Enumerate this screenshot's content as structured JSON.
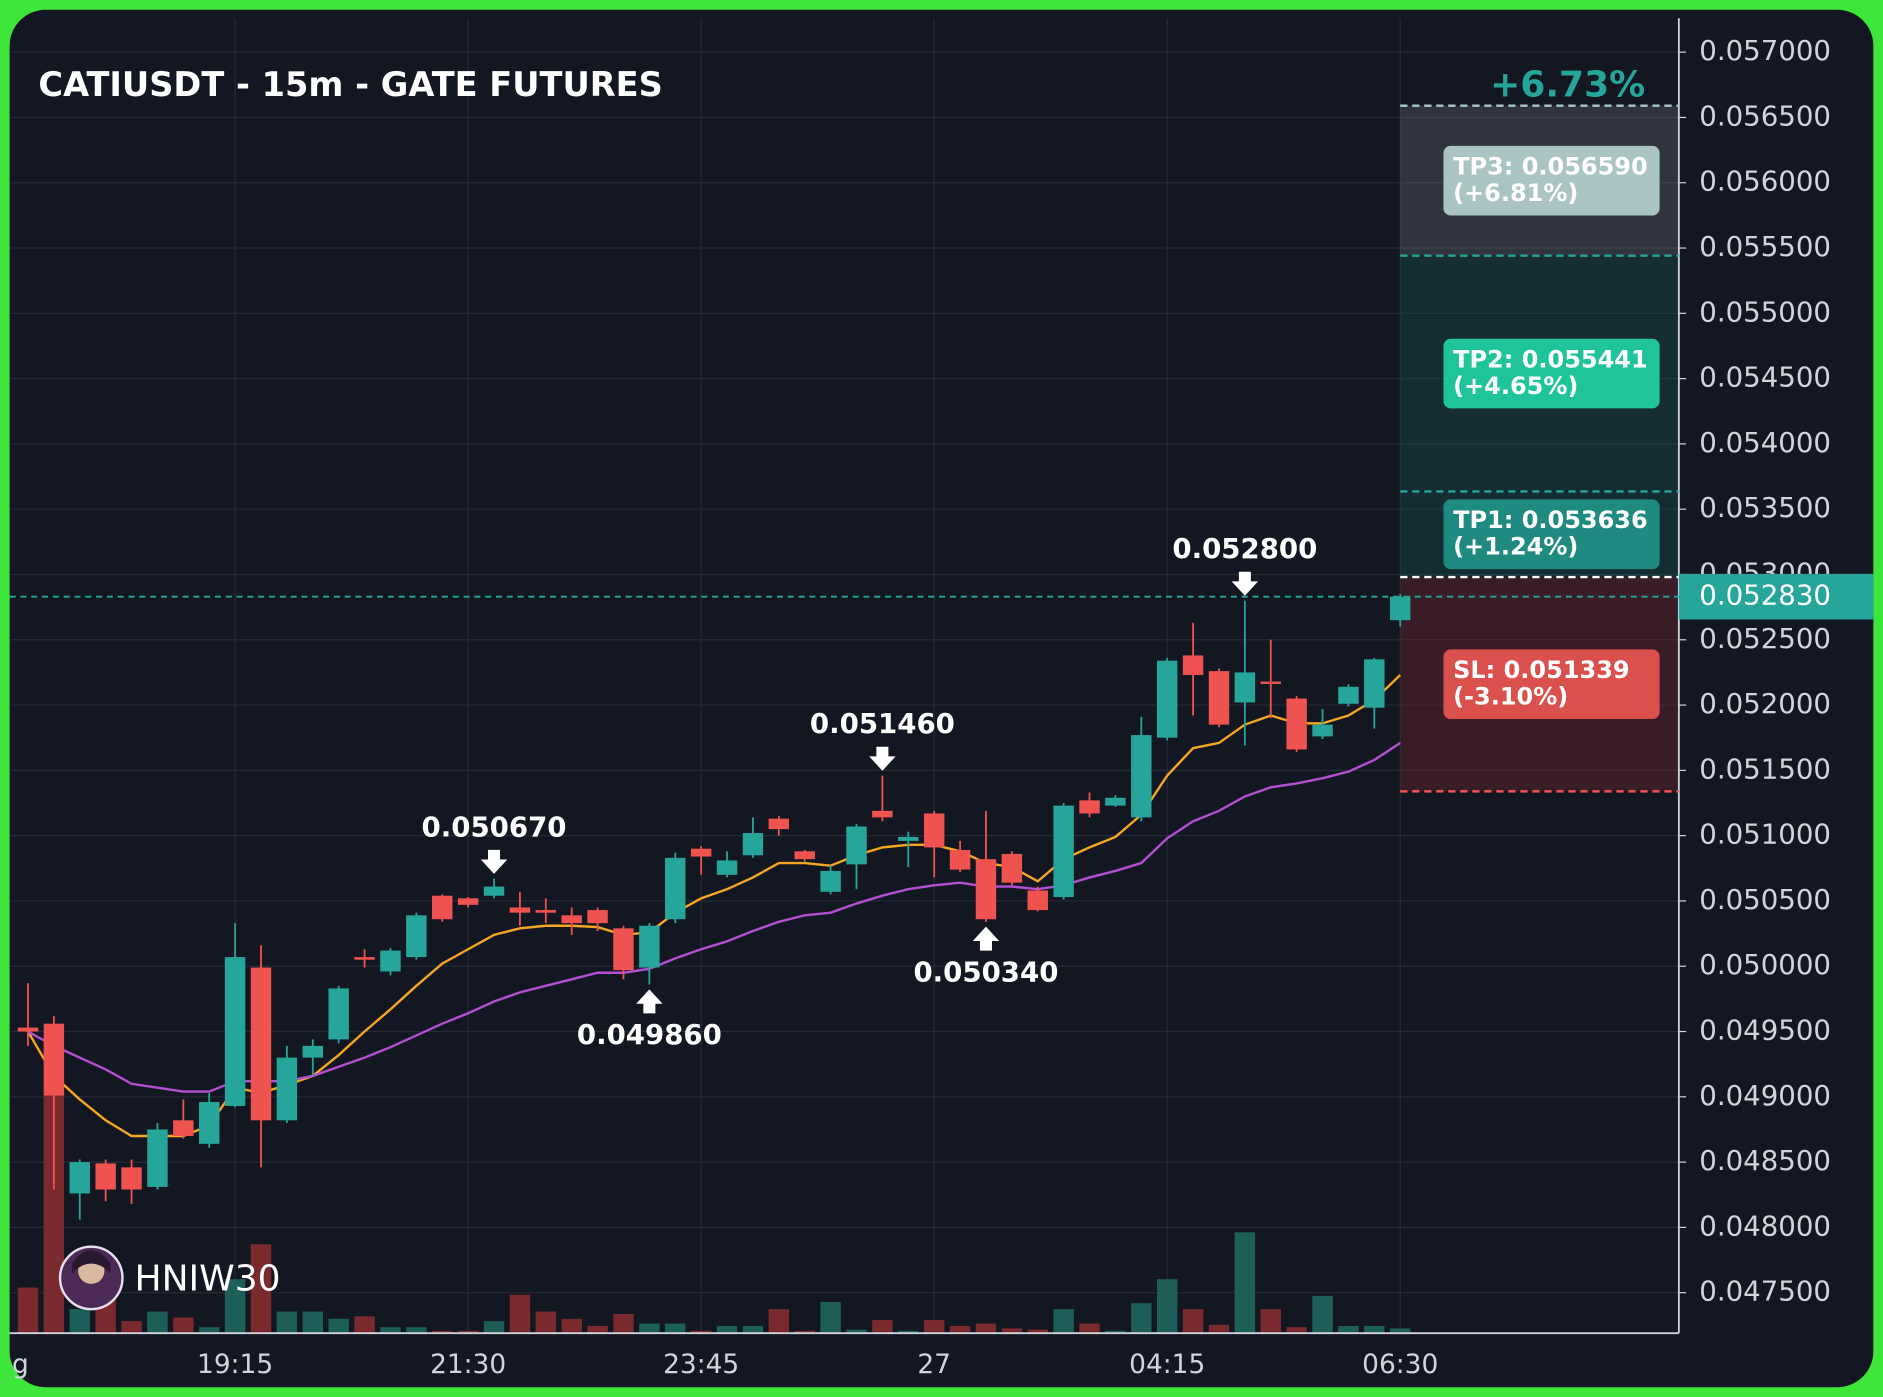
{
  "chart_data": {
    "type": "candlestick",
    "title": "CATIUSDT - 15m - GATE FUTURES",
    "performance": "+6.73%",
    "watermark": "HNIW30",
    "x_edge_label": "g",
    "categories": [
      null,
      null,
      null,
      null,
      null,
      null,
      null,
      null,
      "19:15",
      null,
      null,
      null,
      null,
      null,
      null,
      null,
      null,
      "21:30",
      null,
      null,
      null,
      null,
      null,
      null,
      null,
      null,
      "23:45",
      null,
      null,
      null,
      null,
      null,
      null,
      null,
      null,
      "27",
      null,
      null,
      null,
      null,
      null,
      null,
      null,
      null,
      "04:15",
      null,
      null,
      null,
      null,
      null,
      null,
      null,
      null,
      "06:30"
    ],
    "open": [
      0.04953,
      0.04956,
      0.04826,
      0.04849,
      0.04846,
      0.04831,
      0.04882,
      0.04864,
      0.04893,
      0.04999,
      0.04882,
      0.0493,
      0.04944,
      0.05007,
      0.04996,
      0.05007,
      0.05054,
      0.05052,
      0.05054,
      0.05045,
      0.05043,
      0.05039,
      0.05043,
      0.05029,
      0.04999,
      0.05036,
      0.0509,
      0.0507,
      0.05085,
      0.05113,
      0.05088,
      0.05057,
      0.05078,
      0.05119,
      0.05096,
      0.05117,
      0.05089,
      0.05082,
      0.05086,
      0.05058,
      0.05053,
      0.05127,
      0.05123,
      0.05114,
      0.05175,
      0.05238,
      0.05226,
      0.05202,
      0.05218,
      0.05205,
      0.05176,
      0.05201,
      0.05198,
      0.05265
    ],
    "high": [
      0.04987,
      0.04962,
      0.04852,
      0.04852,
      0.04852,
      0.0488,
      0.04898,
      0.04903,
      0.05033,
      0.05016,
      0.04939,
      0.04944,
      0.04985,
      0.05013,
      0.05014,
      0.05041,
      0.05055,
      0.05053,
      0.05067,
      0.05057,
      0.05052,
      0.05045,
      0.05045,
      0.05031,
      0.05033,
      0.05087,
      0.05092,
      0.05088,
      0.05114,
      0.05115,
      0.05089,
      0.05077,
      0.05109,
      0.05146,
      0.05103,
      0.05119,
      0.05096,
      0.05119,
      0.05088,
      0.05061,
      0.05125,
      0.05133,
      0.05131,
      0.05191,
      0.05236,
      0.05263,
      0.05228,
      0.0528,
      0.0525,
      0.05207,
      0.05197,
      0.05216,
      0.05236,
      0.05285
    ],
    "low": [
      0.04939,
      0.04829,
      0.04806,
      0.0482,
      0.04818,
      0.04829,
      0.04868,
      0.04861,
      0.04892,
      0.04846,
      0.0488,
      0.04916,
      0.04941,
      0.04999,
      0.04993,
      0.05005,
      0.05034,
      0.05045,
      0.05052,
      0.05031,
      0.05033,
      0.05024,
      0.05027,
      0.0499,
      0.04986,
      0.05033,
      0.0507,
      0.05068,
      0.05083,
      0.051,
      0.0508,
      0.05055,
      0.05059,
      0.05111,
      0.05076,
      0.05068,
      0.05072,
      0.05034,
      0.05062,
      0.05042,
      0.05051,
      0.05114,
      0.05122,
      0.05111,
      0.05173,
      0.05192,
      0.05183,
      0.05169,
      0.0519,
      0.05164,
      0.05174,
      0.05199,
      0.05182,
      0.0526
    ],
    "close": [
      0.0495,
      0.04901,
      0.0485,
      0.04829,
      0.04829,
      0.04875,
      0.0487,
      0.04896,
      0.05007,
      0.04882,
      0.0493,
      0.04939,
      0.04983,
      0.05005,
      0.05012,
      0.05039,
      0.05036,
      0.05047,
      0.05061,
      0.05041,
      0.05041,
      0.05033,
      0.05033,
      0.04997,
      0.05031,
      0.05083,
      0.05084,
      0.05081,
      0.05102,
      0.05105,
      0.05082,
      0.05073,
      0.05107,
      0.05114,
      0.05099,
      0.05091,
      0.05074,
      0.05036,
      0.05064,
      0.05043,
      0.05123,
      0.05117,
      0.05129,
      0.05177,
      0.05234,
      0.05223,
      0.05185,
      0.05225,
      0.05217,
      0.05166,
      0.05185,
      0.05214,
      0.05235,
      0.05283
    ],
    "up_color": "#26a69a",
    "down_color": "#ef5350",
    "volume": {
      "values": [
        38,
        198,
        20,
        30,
        10,
        18,
        13,
        5,
        45,
        74,
        18,
        18,
        12,
        14,
        5,
        5,
        2,
        2,
        10,
        32,
        18,
        12,
        6,
        16,
        8,
        8,
        2,
        6,
        6,
        20,
        2,
        26,
        3,
        11,
        2,
        11,
        6,
        8,
        4,
        3,
        20,
        8,
        2,
        25,
        45,
        20,
        7,
        84,
        20,
        5,
        31,
        6,
        6,
        4
      ],
      "up_color": "#1d5e58",
      "down_color": "#7a2a2c"
    },
    "moving_averages": [
      {
        "color": "#f5a623",
        "values": [
          0.0495,
          0.04916,
          0.04898,
          0.04882,
          0.0487,
          0.0487,
          0.0487,
          0.04878,
          0.04907,
          0.04903,
          0.04909,
          0.04916,
          0.04932,
          0.0495,
          0.04967,
          0.04985,
          0.05002,
          0.05013,
          0.05024,
          0.05029,
          0.05031,
          0.05031,
          0.0503,
          0.05024,
          0.05026,
          0.05041,
          0.05052,
          0.05059,
          0.05068,
          0.05079,
          0.05079,
          0.05077,
          0.05085,
          0.05091,
          0.05093,
          0.05093,
          0.05088,
          0.05079,
          0.05076,
          0.05065,
          0.05082,
          0.05091,
          0.05099,
          0.05116,
          0.05146,
          0.05167,
          0.05171,
          0.05185,
          0.05192,
          0.05186,
          0.05186,
          0.05192,
          0.05204,
          0.05223
        ]
      },
      {
        "color": "#b54fd1",
        "values": [
          0.0495,
          0.04939,
          0.0493,
          0.04921,
          0.0491,
          0.04907,
          0.04904,
          0.04904,
          0.04912,
          0.04912,
          0.04912,
          0.04916,
          0.04923,
          0.0493,
          0.04938,
          0.04947,
          0.04956,
          0.04964,
          0.04973,
          0.0498,
          0.04985,
          0.0499,
          0.04995,
          0.04995,
          0.04998,
          0.05006,
          0.05013,
          0.05019,
          0.05027,
          0.05034,
          0.05039,
          0.05041,
          0.05048,
          0.05054,
          0.05059,
          0.05062,
          0.05064,
          0.05061,
          0.05061,
          0.05059,
          0.05062,
          0.05068,
          0.05073,
          0.05079,
          0.05098,
          0.05111,
          0.05119,
          0.0513,
          0.05137,
          0.0514,
          0.05144,
          0.05149,
          0.05158,
          0.05171
        ]
      }
    ],
    "levels": [
      {
        "label": "TP3: 0.056590",
        "change": "(+6.81%)",
        "value": 0.05659,
        "color": "#a9c9c9",
        "box_color": "#aac4c4",
        "zone_color": "rgba(150,160,170,0.22)"
      },
      {
        "label": "TP2: 0.055441",
        "change": "(+4.65%)",
        "value": 0.055441,
        "color": "#26a69a",
        "box_color": "#1fc49a",
        "zone_color": "rgba(22,90,88,0.33)"
      },
      {
        "label": "TP1: 0.053636",
        "change": "(+1.24%)",
        "value": 0.053636,
        "color": "#26a69a",
        "box_color": "#1f8b80",
        "zone_color": "rgba(22,90,88,0.33)"
      }
    ],
    "entry": {
      "value": 0.05298,
      "color": "#ffffff"
    },
    "stop": {
      "label": "SL: 0.051339",
      "change": "(-3.10%)",
      "value": 0.051339,
      "color": "#ef5350",
      "box_color": "#d9504c",
      "zone_color": "rgba(120,40,46,0.38)"
    },
    "current_price": {
      "value": 0.05283,
      "label": "0.052830",
      "color": "#26a69a"
    },
    "annotations": [
      {
        "index": 18,
        "value": 0.05067,
        "label": "0.050670",
        "position": "above"
      },
      {
        "index": 24,
        "value": 0.04986,
        "label": "0.049860",
        "position": "below"
      },
      {
        "index": 33,
        "value": 0.05146,
        "label": "0.051460",
        "position": "above"
      },
      {
        "index": 37,
        "value": 0.05034,
        "label": "0.050340",
        "position": "below"
      },
      {
        "index": 47,
        "value": 0.0528,
        "label": "0.052800",
        "position": "above"
      }
    ],
    "ylim": [
      0.04719,
      0.05726
    ],
    "yticks": [
      {
        "value": 0.0475,
        "label": "0.047500"
      },
      {
        "value": 0.048,
        "label": "0.048000"
      },
      {
        "value": 0.0485,
        "label": "0.048500"
      },
      {
        "value": 0.049,
        "label": "0.049000"
      },
      {
        "value": 0.0495,
        "label": "0.049500"
      },
      {
        "value": 0.05,
        "label": "0.050000"
      },
      {
        "value": 0.0505,
        "label": "0.050500"
      },
      {
        "value": 0.051,
        "label": "0.051000"
      },
      {
        "value": 0.0515,
        "label": "0.051500"
      },
      {
        "value": 0.052,
        "label": "0.052000"
      },
      {
        "value": 0.0525,
        "label": "0.052500"
      },
      {
        "value": 0.053,
        "label": "0.053000"
      },
      {
        "value": 0.0535,
        "label": "0.053500"
      },
      {
        "value": 0.054,
        "label": "0.054000"
      },
      {
        "value": 0.0545,
        "label": "0.054500"
      },
      {
        "value": 0.055,
        "label": "0.055000"
      },
      {
        "value": 0.0555,
        "label": "0.055500"
      },
      {
        "value": 0.056,
        "label": "0.056000"
      },
      {
        "value": 0.0565,
        "label": "0.056500"
      },
      {
        "value": 0.057,
        "label": "0.057000"
      }
    ],
    "grid": true
  }
}
